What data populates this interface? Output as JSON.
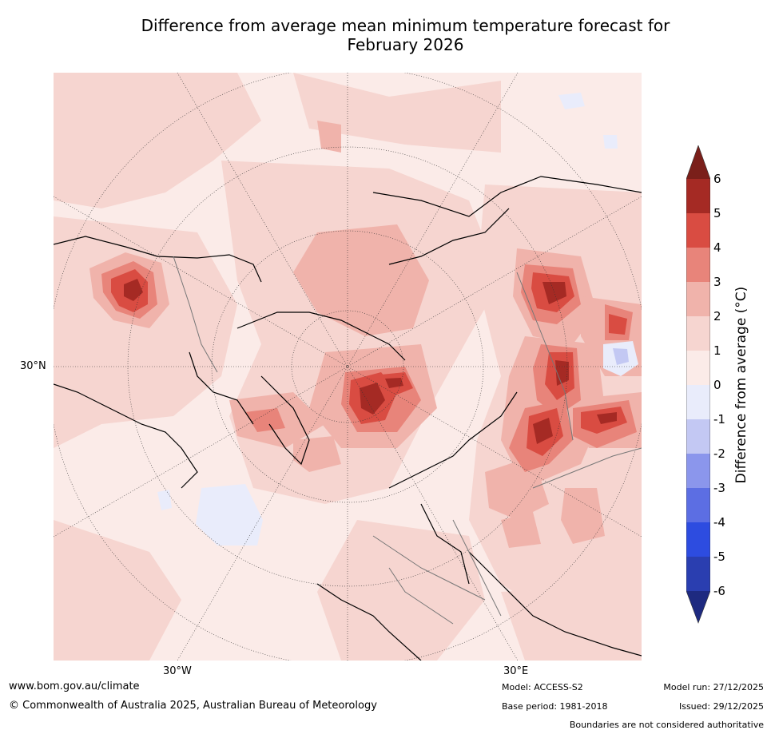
{
  "title_line1": "Difference from average mean minimum temperature forecast for",
  "title_line2": "February 2026",
  "map": {
    "lat_label": "30°N",
    "lon_labels": [
      "30°W",
      "30°E"
    ]
  },
  "colorbar": {
    "label_main": "Difference from average (",
    "label_unit": "°C)",
    "ticks": [
      "6",
      "5",
      "4",
      "3",
      "2",
      "1",
      "0",
      "-1",
      "-2",
      "-3",
      "-4",
      "-5",
      "-6"
    ],
    "colors": {
      "above_6": "#7a1f1a",
      "5_to_6": "#a52a24",
      "4_to_5": "#d94c42",
      "3_to_4": "#e8847a",
      "2_to_3": "#f0b3ab",
      "1_to_2": "#f6d5d0",
      "0_to_1": "#fbebe8",
      "m1_to_0": "#e9ecfb",
      "m2_to_m1": "#c3c8f3",
      "m3_to_m2": "#8b96ec",
      "m4_to_m3": "#5c6ee3",
      "m5_to_m4": "#2d4ce0",
      "m6_to_m5": "#2a3eb0",
      "below_m6": "#1e2a80"
    }
  },
  "footer": {
    "website": "www.bom.gov.au/climate",
    "copyright": "© Commonwealth of Australia 2025, Australian Bureau of Meteorology",
    "model": "Model: ACCESS-S2",
    "base_period": "Base period: 1981-2018",
    "model_run": "Model run: 27/12/2025",
    "issued": "Issued: 29/12/2025",
    "disclaimer": "Boundaries are not considered authoritative"
  }
}
